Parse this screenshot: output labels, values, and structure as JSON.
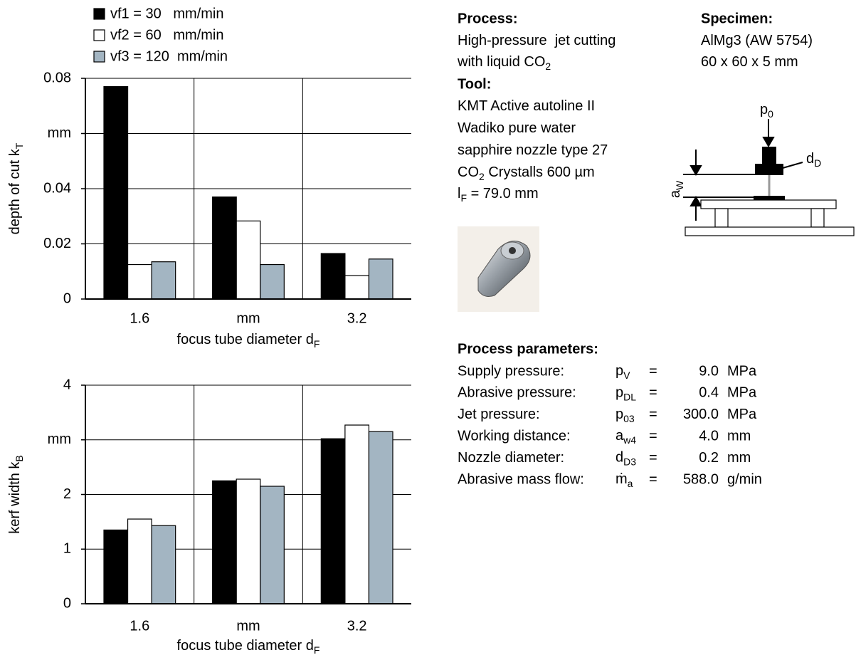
{
  "chart_data": [
    {
      "type": "bar",
      "categories": [
        "1.6",
        "mm",
        "3.2"
      ],
      "series": [
        {
          "name": "vf1 = 30   mm/min",
          "color": "#000000",
          "values": [
            0.077,
            0.037,
            0.0165
          ]
        },
        {
          "name": "vf2 = 60   mm/min",
          "color": "#ffffff",
          "values": [
            0.0125,
            0.0283,
            0.0085
          ]
        },
        {
          "name": "vf3 = 120  mm/min",
          "color": "#a3b5c2",
          "values": [
            0.0135,
            0.0125,
            0.0145
          ]
        }
      ],
      "ylim": [
        0,
        0.08
      ],
      "yticks": [
        0,
        0.02,
        0.04,
        {
          "value": 0.06,
          "label": "mm"
        },
        0.08
      ],
      "ylabel": {
        "text": "depth of cut k",
        "sub": "T"
      },
      "xlabel": {
        "text": "focus tube diameter d",
        "sub": "F"
      },
      "grid": true,
      "legend": "top-left"
    },
    {
      "type": "bar",
      "categories": [
        "1.6",
        "mm",
        "3.2"
      ],
      "series": [
        {
          "color": "#000000",
          "values": [
            1.35,
            2.25,
            3.02
          ]
        },
        {
          "color": "#ffffff",
          "values": [
            1.55,
            2.28,
            3.27
          ]
        },
        {
          "color": "#a3b5c2",
          "values": [
            1.43,
            2.15,
            3.15
          ]
        }
      ],
      "ylim": [
        0,
        4
      ],
      "yticks": [
        0,
        1,
        2,
        {
          "value": 3,
          "label": "mm"
        },
        4
      ],
      "ylabel": {
        "text": "kerf width k",
        "sub": "B"
      },
      "xlabel": {
        "text": "focus tube diameter d",
        "sub": "F"
      },
      "grid": true
    }
  ],
  "process": {
    "heading": "Process:",
    "lines": [
      {
        "text": "High-pressure  jet cutting"
      },
      {
        "text": "with liquid CO",
        "sub": "2"
      }
    ]
  },
  "tool": {
    "heading": "Tool:",
    "lines": [
      {
        "text": "KMT Active autoline II"
      },
      {
        "text": "Wadiko pure water"
      },
      {
        "text": "sapphire nozzle type 27"
      },
      {
        "text": "CO",
        "sub": "2",
        "after": " Crystalls 600 µm"
      },
      {
        "text": "l",
        "sub": "F",
        "after": " = 79.0 mm"
      }
    ]
  },
  "specimen": {
    "heading": "Specimen:",
    "lines": [
      {
        "text": "AlMg3 (AW 5754)"
      },
      {
        "text": "60 x 60 x 5 mm"
      }
    ]
  },
  "diagram": {
    "pressure": {
      "text": "p",
      "sub": "0"
    },
    "diameter": {
      "text": "d",
      "sub": "D"
    },
    "distance": {
      "text": "a",
      "sub": "W"
    }
  },
  "parameters": {
    "heading": "Process parameters:",
    "rows": [
      {
        "label": "Supply pressure:",
        "symbol": {
          "text": "p",
          "sub": "V"
        },
        "eq": "=",
        "value": "9.0",
        "unit": "MPa"
      },
      {
        "label": "Abrasive pressure:",
        "symbol": {
          "text": "p",
          "sub": "DL"
        },
        "eq": "=",
        "value": "0.4",
        "unit": "MPa"
      },
      {
        "label": "Jet pressure:",
        "symbol": {
          "text": "p",
          "sub": "03"
        },
        "eq": "=",
        "value": "300.0",
        "unit": "MPa"
      },
      {
        "label": "Working distance:",
        "symbol": {
          "text": "a",
          "sub": "w4"
        },
        "eq": "=",
        "value": "4.0",
        "unit": "mm"
      },
      {
        "label": "Nozzle diameter:",
        "symbol": {
          "text": "d",
          "sub": "D3"
        },
        "eq": "=",
        "value": "0.2",
        "unit": "mm"
      },
      {
        "label": "Abrasive mass flow:",
        "symbol": {
          "text": "ṁ",
          "sub": "a"
        },
        "eq": "=",
        "value": "588.0",
        "unit": "g/min"
      }
    ]
  }
}
